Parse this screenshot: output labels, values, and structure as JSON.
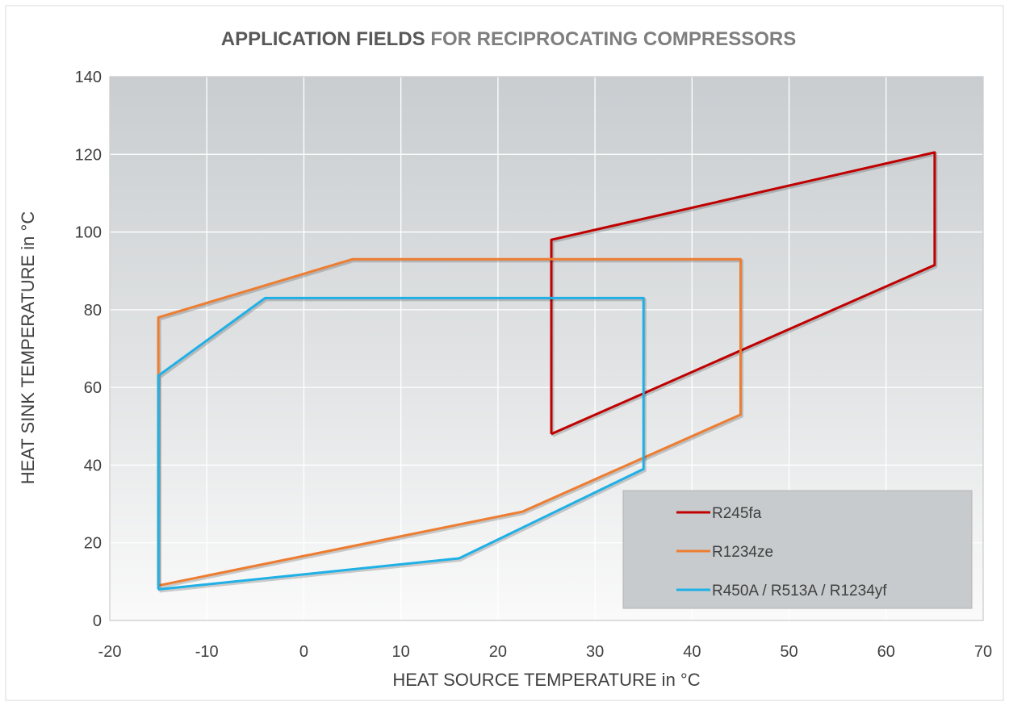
{
  "chart_data": {
    "type": "line",
    "title_parts": [
      {
        "text": "APPLICATION FIELDS ",
        "color": "#595959"
      },
      {
        "text": "FOR RECIPROCATING COMPRESSORS",
        "color": "#7f7f7f"
      }
    ],
    "xlabel": "HEAT SOURCE TEMPERATURE in °C",
    "ylabel": "HEAT SINK TEMPERATURE in °C",
    "xlim": [
      -20,
      70
    ],
    "ylim": [
      0,
      140
    ],
    "xticks": [
      -20,
      -10,
      0,
      10,
      20,
      30,
      40,
      50,
      60,
      70
    ],
    "yticks": [
      0,
      20,
      40,
      60,
      80,
      100,
      120,
      140
    ],
    "grid": true,
    "legend_position": "bottom-right",
    "series": [
      {
        "name": "R245fa",
        "color": "#c00000",
        "x": [
          25.5,
          25.5,
          65,
          65,
          25.5
        ],
        "y": [
          48,
          98,
          120.5,
          91.5,
          48
        ]
      },
      {
        "name": "R1234ze",
        "color": "#ed7d31",
        "x": [
          -15,
          -15,
          5,
          45,
          45,
          22.5,
          -15
        ],
        "y": [
          9,
          78,
          93,
          93,
          53,
          28,
          9
        ]
      },
      {
        "name": "R450A / R513A / R1234yf",
        "color": "#1fb0e6",
        "x": [
          -15,
          -15,
          -4,
          35,
          35,
          16,
          -15
        ],
        "y": [
          8,
          63,
          83,
          83,
          39,
          16,
          8
        ]
      }
    ]
  }
}
